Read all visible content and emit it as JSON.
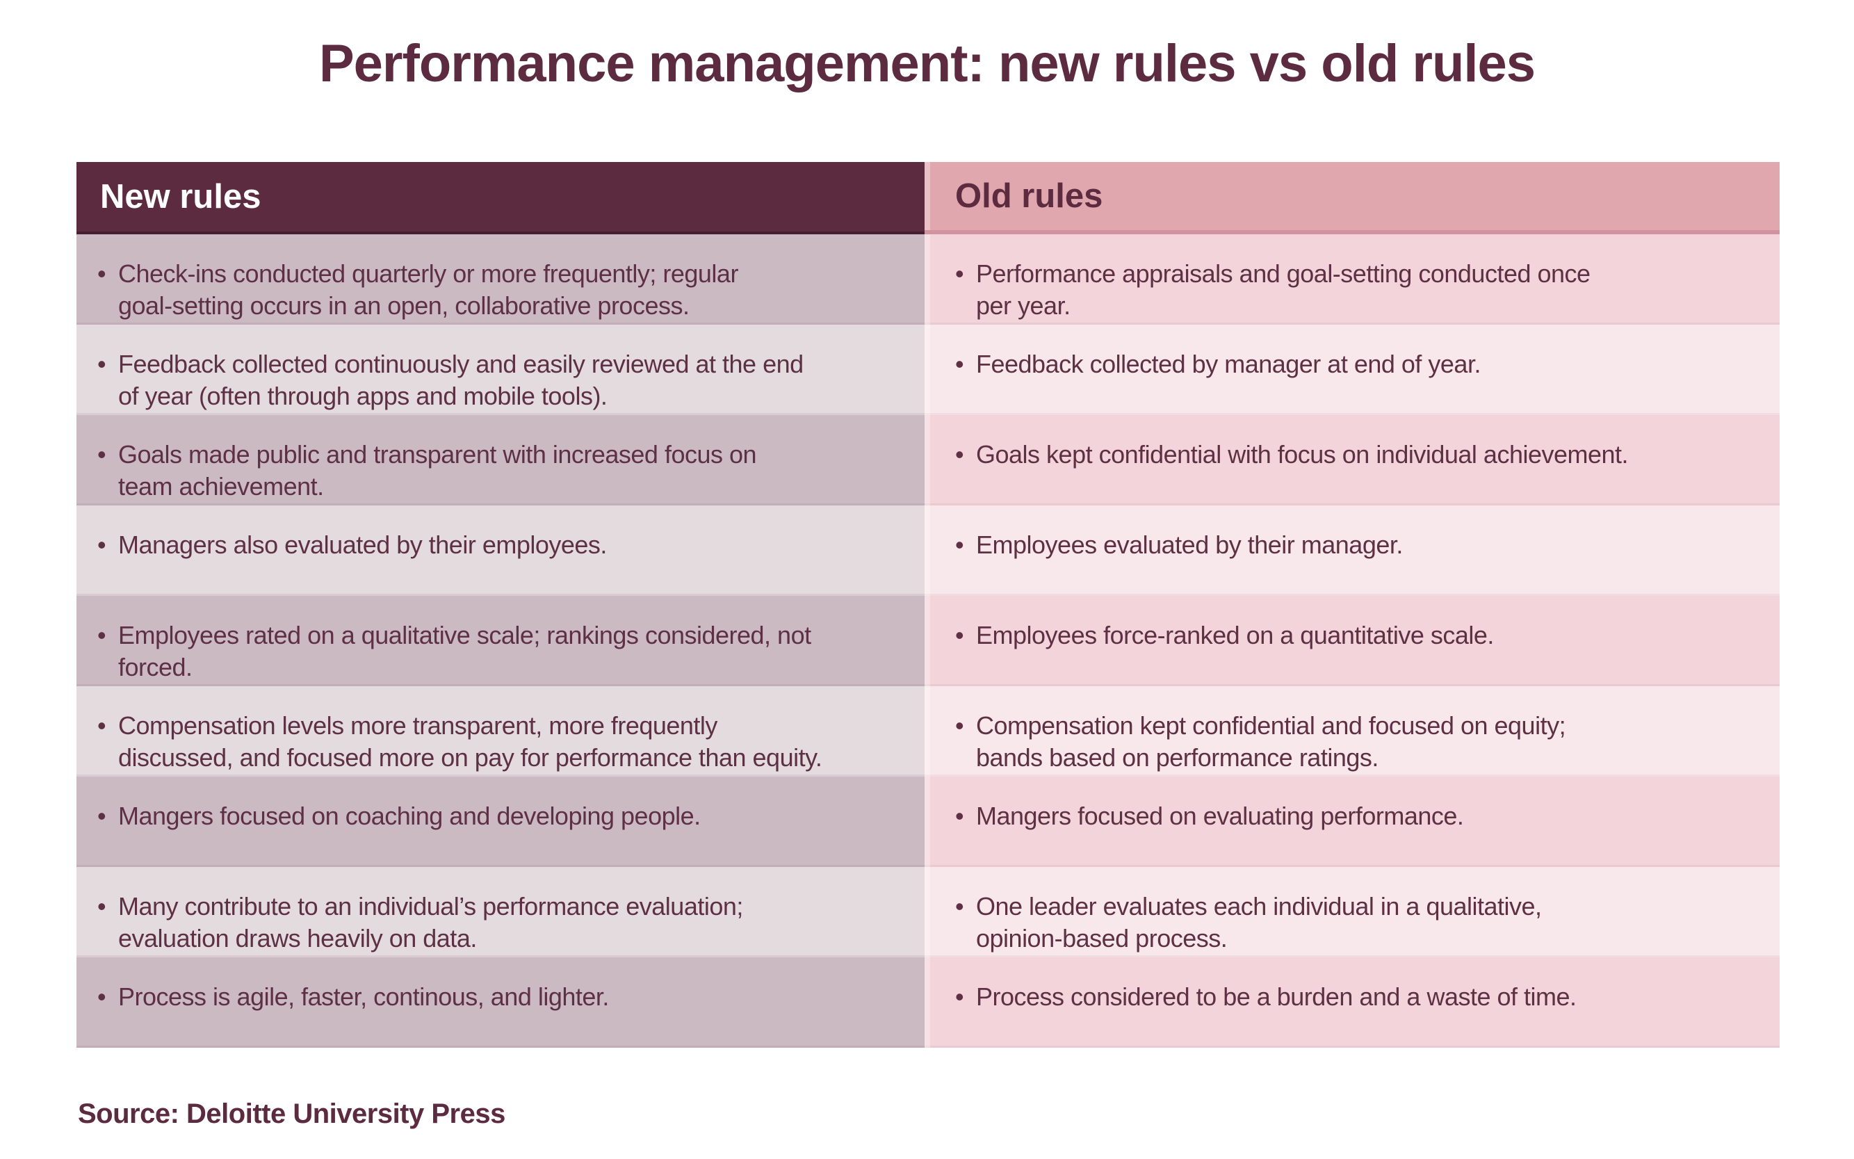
{
  "title": "Performance management: new rules vs old rules",
  "bullet": "•",
  "source": "Source: Deloitte University Press",
  "colors": {
    "accent_dark": "#5c2b3f",
    "new_header_bg": "#5c2b3f",
    "new_header_text": "#ffffff",
    "old_header_bg": "#e1a7ae",
    "new_row_odd": "#ccbac3",
    "new_row_even": "#e4dbdf",
    "old_row_odd": "#f3d4da",
    "old_row_even": "#f9e8eb",
    "body_text": "#5d3044",
    "page_bg": "#ffffff"
  },
  "chart_data": {
    "type": "table",
    "title": "Performance management: new rules vs old rules",
    "columns": [
      "New rules",
      "Old rules"
    ],
    "rows": [
      [
        "Check-ins conducted quarterly or more frequently; regular\ngoal-setting occurs in an open, collaborative process.",
        "Performance appraisals and goal-setting conducted once\nper year."
      ],
      [
        "Feedback collected continuously and easily reviewed at the end\nof year (often through apps and mobile tools).",
        "Feedback collected by manager at end of year."
      ],
      [
        "Goals made public and transparent with increased focus on\nteam achievement.",
        "Goals kept confidential with focus on individual achievement."
      ],
      [
        "Managers also evaluated by their employees.",
        "Employees evaluated by their manager."
      ],
      [
        "Employees rated on a qualitative scale; rankings considered, not\nforced.",
        "Employees force-ranked on a quantitative scale."
      ],
      [
        "Compensation levels more transparent, more frequently\ndiscussed, and focused more on pay for performance than equity.",
        "Compensation kept confidential and focused on equity;\nbands based on performance ratings."
      ],
      [
        "Mangers focused on coaching and developing people.",
        "Mangers focused on evaluating performance."
      ],
      [
        "Many contribute to an individual’s performance evaluation;\nevaluation draws heavily on data.",
        "One leader evaluates each individual in a qualitative,\nopinion-based process."
      ],
      [
        "Process is agile, faster, continous, and lighter.",
        "Process considered to be a burden and a waste of time."
      ]
    ],
    "source": "Source: Deloitte University Press"
  }
}
